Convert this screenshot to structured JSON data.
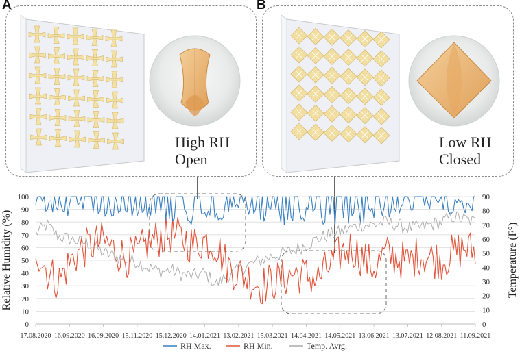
{
  "panels": {
    "a": {
      "letter": "A",
      "caption_line1": "High RH",
      "caption_line2": "Open"
    },
    "b": {
      "letter": "B",
      "caption_line1": "Low RH",
      "caption_line2": "Closed"
    }
  },
  "chart_data": {
    "type": "line",
    "title": "",
    "ylabel": "Relative Humidity (%)",
    "y2label": "Temperature (F°)",
    "xlabel": "",
    "ylim": [
      0,
      100
    ],
    "y2lim": [
      0,
      90
    ],
    "yticks": [
      "0",
      "10",
      "20",
      "30",
      "40",
      "50",
      "60",
      "70",
      "80",
      "90",
      "100"
    ],
    "y2ticks": [
      "0",
      "10",
      "20",
      "30",
      "40",
      "50",
      "60",
      "70",
      "80",
      "90"
    ],
    "xticks": [
      "17.08.2020",
      "16.09.2020",
      "16.09.2020",
      "15.11.2020",
      "15.12.2020",
      "14.01.2021",
      "13.02.2021",
      "15.03.2021",
      "14.04.2021",
      "14.05.2021",
      "13.06.2021",
      "13.07.2021",
      "12.08.2021",
      "11.09.2021"
    ],
    "grid": true,
    "legend_position": "bottom",
    "colors": {
      "rh_max": "#3a7fc0",
      "rh_min": "#e0533a",
      "temp": "#aaaaaa"
    },
    "series": [
      {
        "name": "RH Max.",
        "axis": "left",
        "key": "rh_max",
        "anchors": [
          [
            0,
            100
          ],
          [
            20,
            97
          ],
          [
            40,
            98
          ],
          [
            60,
            97
          ],
          [
            80,
            97
          ],
          [
            100,
            95
          ],
          [
            120,
            93
          ],
          [
            140,
            90
          ],
          [
            160,
            92
          ],
          [
            180,
            96
          ],
          [
            200,
            93
          ],
          [
            220,
            89
          ],
          [
            240,
            92
          ],
          [
            260,
            88
          ],
          [
            280,
            90
          ],
          [
            300,
            94
          ],
          [
            320,
            97
          ],
          [
            340,
            98
          ],
          [
            360,
            98
          ],
          [
            380,
            99
          ],
          [
            390,
            99
          ]
        ]
      },
      {
        "name": "RH Min.",
        "axis": "left",
        "key": "rh_min",
        "anchors": [
          [
            0,
            60
          ],
          [
            10,
            42
          ],
          [
            20,
            33
          ],
          [
            30,
            48
          ],
          [
            40,
            58
          ],
          [
            50,
            62
          ],
          [
            60,
            65
          ],
          [
            70,
            58
          ],
          [
            80,
            52
          ],
          [
            90,
            54
          ],
          [
            100,
            64
          ],
          [
            110,
            68
          ],
          [
            120,
            70
          ],
          [
            130,
            67
          ],
          [
            140,
            62
          ],
          [
            150,
            66
          ],
          [
            160,
            62
          ],
          [
            170,
            46
          ],
          [
            180,
            40
          ],
          [
            190,
            35
          ],
          [
            200,
            30
          ],
          [
            210,
            33
          ],
          [
            220,
            36
          ],
          [
            230,
            40
          ],
          [
            240,
            38
          ],
          [
            250,
            35
          ],
          [
            260,
            45
          ],
          [
            270,
            55
          ],
          [
            280,
            60
          ],
          [
            290,
            52
          ],
          [
            300,
            44
          ],
          [
            310,
            55
          ],
          [
            320,
            52
          ],
          [
            330,
            48
          ],
          [
            340,
            55
          ],
          [
            350,
            52
          ],
          [
            360,
            50
          ],
          [
            370,
            55
          ],
          [
            380,
            60
          ],
          [
            390,
            57
          ]
        ]
      },
      {
        "name": "Temp. Avrg.",
        "axis": "right",
        "key": "temp",
        "anchors": [
          [
            0,
            64
          ],
          [
            10,
            70
          ],
          [
            20,
            62
          ],
          [
            30,
            60
          ],
          [
            40,
            58
          ],
          [
            50,
            56
          ],
          [
            60,
            50
          ],
          [
            70,
            48
          ],
          [
            80,
            45
          ],
          [
            90,
            44
          ],
          [
            100,
            40
          ],
          [
            110,
            37
          ],
          [
            120,
            38
          ],
          [
            130,
            35
          ],
          [
            140,
            34
          ],
          [
            150,
            36
          ],
          [
            160,
            28
          ],
          [
            170,
            34
          ],
          [
            180,
            38
          ],
          [
            190,
            42
          ],
          [
            200,
            45
          ],
          [
            210,
            48
          ],
          [
            220,
            50
          ],
          [
            230,
            52
          ],
          [
            240,
            56
          ],
          [
            250,
            60
          ],
          [
            260,
            63
          ],
          [
            270,
            65
          ],
          [
            280,
            68
          ],
          [
            290,
            70
          ],
          [
            300,
            70
          ],
          [
            310,
            72
          ],
          [
            320,
            70
          ],
          [
            330,
            68
          ],
          [
            340,
            68
          ],
          [
            350,
            70
          ],
          [
            360,
            72
          ],
          [
            370,
            76
          ],
          [
            380,
            74
          ],
          [
            390,
            72
          ]
        ]
      }
    ],
    "days_span": 390
  }
}
